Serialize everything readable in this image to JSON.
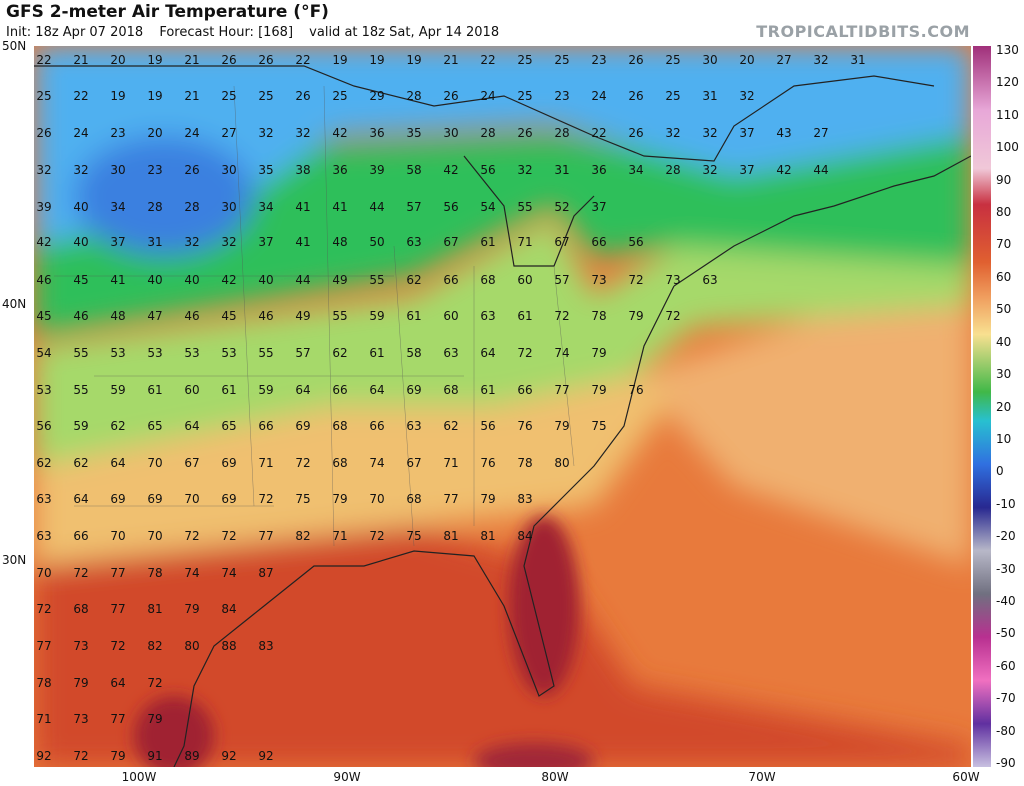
{
  "header": {
    "title": "GFS 2-meter Air Temperature (°F)",
    "init": "Init: 18z Apr 07 2018",
    "forecast_hour": "Forecast Hour: [168]",
    "valid": "valid at 18z Sat, Apr 14 2018",
    "credit": "TROPICALTIDBITS.COM"
  },
  "map": {
    "lat_labels": [
      "50N",
      "40N",
      "30N"
    ],
    "lon_labels": [
      "100W",
      "90W",
      "80W",
      "70W",
      "60W"
    ],
    "temperature_labels": [
      [
        "22",
        "21",
        "20",
        "19",
        "21",
        "26",
        "26",
        "22",
        "19",
        "19",
        "19",
        "21",
        "22",
        "25",
        "25",
        "23",
        "26",
        "25",
        "30",
        "20",
        "27",
        "32",
        "31"
      ],
      [
        "25",
        "22",
        "19",
        "19",
        "21",
        "25",
        "25",
        "26",
        "25",
        "29",
        "28",
        "26",
        "24",
        "25",
        "23",
        "24",
        "26",
        "25",
        "31",
        "32"
      ],
      [
        "26",
        "24",
        "23",
        "20",
        "24",
        "27",
        "32",
        "32",
        "42",
        "36",
        "35",
        "30",
        "28",
        "26",
        "28",
        "22",
        "26",
        "32",
        "32",
        "37",
        "43",
        "27"
      ],
      [
        "32",
        "32",
        "30",
        "23",
        "26",
        "30",
        "35",
        "38",
        "36",
        "39",
        "58",
        "42",
        "56",
        "32",
        "31",
        "36",
        "34",
        "28",
        "32",
        "37",
        "42",
        "44"
      ],
      [
        "39",
        "40",
        "34",
        "28",
        "28",
        "30",
        "34",
        "41",
        "41",
        "44",
        "57",
        "56",
        "54",
        "55",
        "52",
        "37"
      ],
      [
        "42",
        "40",
        "37",
        "31",
        "32",
        "32",
        "37",
        "41",
        "48",
        "50",
        "63",
        "67",
        "61",
        "71",
        "67",
        "66",
        "56"
      ],
      [
        "46",
        "45",
        "41",
        "40",
        "40",
        "42",
        "40",
        "44",
        "49",
        "55",
        "62",
        "66",
        "68",
        "60",
        "57",
        "73",
        "72",
        "73",
        "63"
      ],
      [
        "45",
        "46",
        "48",
        "47",
        "46",
        "45",
        "46",
        "49",
        "55",
        "59",
        "61",
        "60",
        "63",
        "61",
        "72",
        "78",
        "79",
        "72"
      ],
      [
        "54",
        "55",
        "53",
        "53",
        "53",
        "53",
        "55",
        "57",
        "62",
        "61",
        "58",
        "63",
        "64",
        "72",
        "74",
        "79"
      ],
      [
        "53",
        "55",
        "59",
        "61",
        "60",
        "61",
        "59",
        "64",
        "66",
        "64",
        "69",
        "68",
        "61",
        "66",
        "77",
        "79",
        "76"
      ],
      [
        "56",
        "59",
        "62",
        "65",
        "64",
        "65",
        "66",
        "69",
        "68",
        "66",
        "63",
        "62",
        "56",
        "76",
        "79",
        "75"
      ],
      [
        "62",
        "62",
        "64",
        "70",
        "67",
        "69",
        "71",
        "72",
        "68",
        "74",
        "67",
        "71",
        "76",
        "78",
        "80"
      ],
      [
        "63",
        "64",
        "69",
        "69",
        "70",
        "69",
        "72",
        "75",
        "79",
        "70",
        "68",
        "77",
        "79",
        "83"
      ],
      [
        "63",
        "66",
        "70",
        "70",
        "72",
        "72",
        "77",
        "82",
        "71",
        "72",
        "75",
        "81",
        "81",
        "84"
      ],
      [
        "70",
        "72",
        "77",
        "78",
        "74",
        "74",
        "87"
      ],
      [
        "72",
        "68",
        "77",
        "81",
        "79",
        "84"
      ],
      [
        "77",
        "73",
        "72",
        "82",
        "80",
        "88",
        "83"
      ],
      [
        "78",
        "79",
        "64",
        "72"
      ],
      [
        "71",
        "73",
        "77",
        "79"
      ],
      [
        "92",
        "72",
        "79",
        "91",
        "89",
        "92",
        "92"
      ]
    ]
  },
  "colorbar": {
    "labels": [
      "130",
      "120",
      "110",
      "100",
      "90",
      "80",
      "70",
      "60",
      "50",
      "40",
      "30",
      "20",
      "10",
      "0",
      "-10",
      "-20",
      "-30",
      "-40",
      "-50",
      "-60",
      "-70",
      "-80",
      "-90"
    ]
  },
  "colors": {
    "very_cold": "#2a6fe0",
    "cold": "#4fb0f0",
    "cool": "#2bbf5a",
    "mild": "#9bd86a",
    "warm": "#f0c070",
    "hot": "#e0692a",
    "very_hot": "#b8282a",
    "extreme": "#8a1838"
  }
}
